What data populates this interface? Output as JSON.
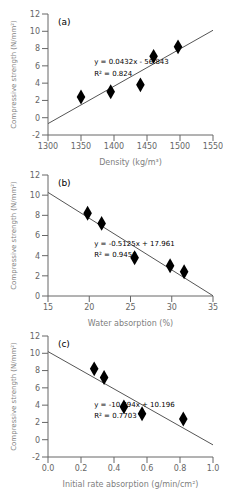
{
  "chart_data": [
    {
      "type": "scatter",
      "annotations": [
        "(a)",
        "y = 0.0432x - 56.843",
        "R² = 0.824"
      ],
      "xlabel": "Density (kg/m³)",
      "ylabel": "Compressive strength (N/mm²)",
      "xlim": [
        1300,
        1550
      ],
      "xticks": [
        1300,
        1350,
        1400,
        1450,
        1500,
        1550
      ],
      "ylim": [
        -2,
        12
      ],
      "yticks": [
        -2,
        0,
        2,
        4,
        6,
        8,
        10,
        12
      ],
      "series": [
        {
          "type": "line",
          "color": "#555555",
          "x": [
            1300,
            1550
          ],
          "values": [
            -0.683,
            10.117
          ]
        },
        {
          "type": "scatter",
          "marker": "diamond",
          "color": "black",
          "x": [
            1350,
            1395,
            1440,
            1460,
            1497
          ],
          "values": [
            2.4,
            3.0,
            3.8,
            7.1,
            8.2
          ]
        }
      ]
    },
    {
      "type": "scatter",
      "annotations": [
        "(b)",
        "y = -0.5125x + 17.961",
        "R² = 0.9458"
      ],
      "xlabel": "Water absorption (%)",
      "ylabel": "Compressive strength (N/mm²)",
      "xlim": [
        15,
        35
      ],
      "xticks": [
        15,
        20,
        25,
        30,
        35
      ],
      "ylim": [
        0,
        12
      ],
      "yticks": [
        0,
        2,
        4,
        6,
        8,
        10,
        12
      ],
      "series": [
        {
          "type": "line",
          "color": "#555555",
          "x": [
            15,
            35
          ],
          "values": [
            10.2735,
            0.0235
          ]
        },
        {
          "type": "scatter",
          "marker": "diamond",
          "color": "black",
          "x": [
            19.8,
            21.5,
            25.5,
            29.8,
            31.5
          ],
          "values": [
            8.2,
            7.2,
            3.8,
            3.0,
            2.4
          ]
        }
      ]
    },
    {
      "type": "scatter",
      "annotations": [
        "(c)",
        "y = -10.794x + 10.196",
        "R² = 0.7703"
      ],
      "xlabel": "Initial rate absorption (g/min/cm²)",
      "ylabel": "Compressive strength (N/mm²)",
      "xlim": [
        0,
        1
      ],
      "xticks": [
        {
          "value": 0,
          "label": "0.0"
        },
        0.2,
        0.4,
        0.6,
        0.8,
        {
          "value": 1,
          "label": "1.0"
        }
      ],
      "ylim": [
        -2,
        12
      ],
      "yticks": [
        -2,
        0,
        2,
        4,
        6,
        8,
        10,
        12
      ],
      "series": [
        {
          "type": "line",
          "color": "#555555",
          "x": [
            0,
            1
          ],
          "values": [
            10.196,
            -0.598
          ]
        },
        {
          "type": "scatter",
          "marker": "diamond",
          "color": "black",
          "x": [
            0.28,
            0.34,
            0.46,
            0.57,
            0.82
          ],
          "values": [
            8.2,
            7.2,
            3.8,
            3.0,
            2.4
          ]
        }
      ]
    }
  ]
}
